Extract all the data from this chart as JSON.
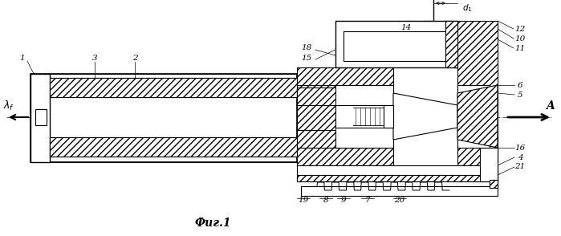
{
  "fig_label": "Фиг.1",
  "bg": "#ffffff"
}
